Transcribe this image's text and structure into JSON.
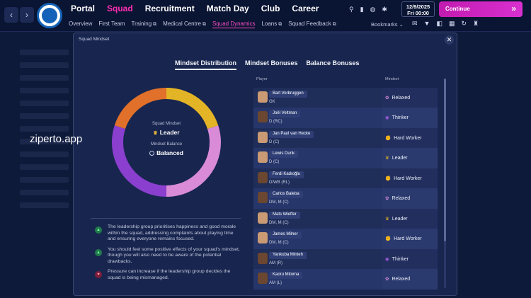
{
  "nav": {
    "back": "‹",
    "forward": "›",
    "main": [
      "Portal",
      "Squad",
      "Recruitment",
      "Match Day",
      "Club",
      "Career"
    ],
    "sub": [
      "Overview",
      "First Team",
      "Training",
      "Medical Centre",
      "Squad Dynamics",
      "Loans",
      "Squad Feedback"
    ],
    "bookmarks": "Bookmarks",
    "date": "12/9/2025",
    "day_time": "Fri  00:00",
    "continue": "Continue",
    "continue_icon": "»"
  },
  "watermark": "ziperto.app",
  "modal": {
    "title": "Squad Mindset",
    "close": "✕",
    "tabs": [
      "Mindset Distribution",
      "Mindset Bonuses",
      "Balance Bonuses"
    ],
    "squad_mindset_label": "Squad Mindset",
    "squad_mindset_value": "Leader",
    "mindset_balance_label": "Mindset Balance",
    "mindset_balance_value": "Balanced",
    "donut": [
      {
        "mindset": "Leader",
        "share": 0.2,
        "color": "#e3b425"
      },
      {
        "mindset": "Relaxed",
        "share": 0.3,
        "color": "#d98bd8"
      },
      {
        "mindset": "Thinker",
        "share": 0.3,
        "color": "#8b3fcf"
      },
      {
        "mindset": "Hard Worker",
        "share": 0.2,
        "color": "#e0702a"
      }
    ],
    "notes": [
      {
        "type": "positive",
        "text": "The leadership group prioritises happiness and good morale within the squad, addressing complaints about playing time and ensuring everyone remains focused."
      },
      {
        "type": "positive",
        "text": "You should feel some positive effects of your squad's mindset, though you will also need to be aware of the potential drawbacks."
      },
      {
        "type": "negative",
        "text": "Pressure can increase if the leadership group decides the squad is being mismanaged."
      }
    ],
    "table": {
      "headers": {
        "player": "Player",
        "mindset": "Mindset"
      },
      "rows": [
        {
          "name": "Bart Verbruggen",
          "position": "GK",
          "mindset": "Relaxed",
          "icon": "✿",
          "color": "#d98bd8"
        },
        {
          "name": "Joël Veltman",
          "position": "D (RC)",
          "mindset": "Thinker",
          "icon": "◉",
          "color": "#a35be0"
        },
        {
          "name": "Jan Paul van Hecke",
          "position": "D (C)",
          "mindset": "Hard Worker",
          "icon": "✊",
          "color": "#e0702a"
        },
        {
          "name": "Lewis Dunk",
          "position": "D (C)",
          "mindset": "Leader",
          "icon": "♛",
          "color": "#e3b425"
        },
        {
          "name": "Ferdi Kadıoğlu",
          "position": "D/WB (RL)",
          "mindset": "Hard Worker",
          "icon": "✊",
          "color": "#e0702a"
        },
        {
          "name": "Carlos Baleba",
          "position": "DM, M (C)",
          "mindset": "Relaxed",
          "icon": "✿",
          "color": "#d98bd8"
        },
        {
          "name": "Mats Wieffer",
          "position": "DM, M (C)",
          "mindset": "Leader",
          "icon": "♛",
          "color": "#e3b425"
        },
        {
          "name": "James Milner",
          "position": "DM, M (C)",
          "mindset": "Hard Worker",
          "icon": "✊",
          "color": "#e0702a"
        },
        {
          "name": "Yankuba Minteh",
          "position": "AM (R)",
          "mindset": "Thinker",
          "icon": "◉",
          "color": "#a35be0"
        },
        {
          "name": "Kaoru Mitoma",
          "position": "AM (L)",
          "mindset": "Relaxed",
          "icon": "✿",
          "color": "#d98bd8"
        }
      ]
    }
  }
}
